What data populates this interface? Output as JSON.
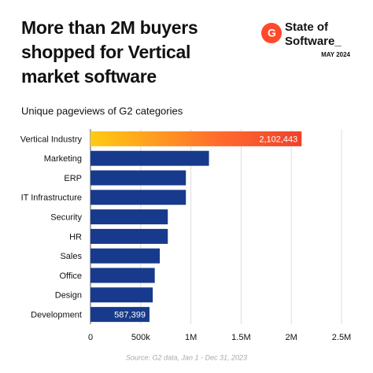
{
  "chart_data": {
    "type": "hbar",
    "title": "More than 2M buyers shopped for Vertical market software",
    "subtitle": "Unique pageviews of G2 categories",
    "brand_lines": [
      "State of",
      "Software_"
    ],
    "date": "MAY 2024",
    "source": "Source: G2 data, Jan 1 - Dec 31, 2023",
    "categories": [
      "Vertical Industry",
      "Marketing",
      "ERP",
      "IT Infrastructure",
      "Security",
      "HR",
      "Sales",
      "Office",
      "Design",
      "Development"
    ],
    "values": [
      2102443,
      1180000,
      950000,
      950000,
      770000,
      770000,
      690000,
      640000,
      620000,
      587399
    ],
    "value_labels": [
      "2,102,443",
      null,
      null,
      null,
      null,
      null,
      null,
      null,
      null,
      "587,399"
    ],
    "color": "#173a8c",
    "highlight": 0,
    "highlight_colors": [
      "#ffcc12",
      "#ff6d2e",
      "#f0412b"
    ],
    "xlim": [
      0,
      2500000
    ],
    "xticks": [
      0,
      {
        "value": 500000,
        "label": "500k"
      },
      {
        "value": 1000000,
        "label": "1M"
      },
      {
        "value": 1500000,
        "label": "1.5M"
      },
      {
        "value": 2000000,
        "label": "2M"
      },
      {
        "value": 2500000,
        "label": "2.5M"
      }
    ],
    "grid": true
  }
}
